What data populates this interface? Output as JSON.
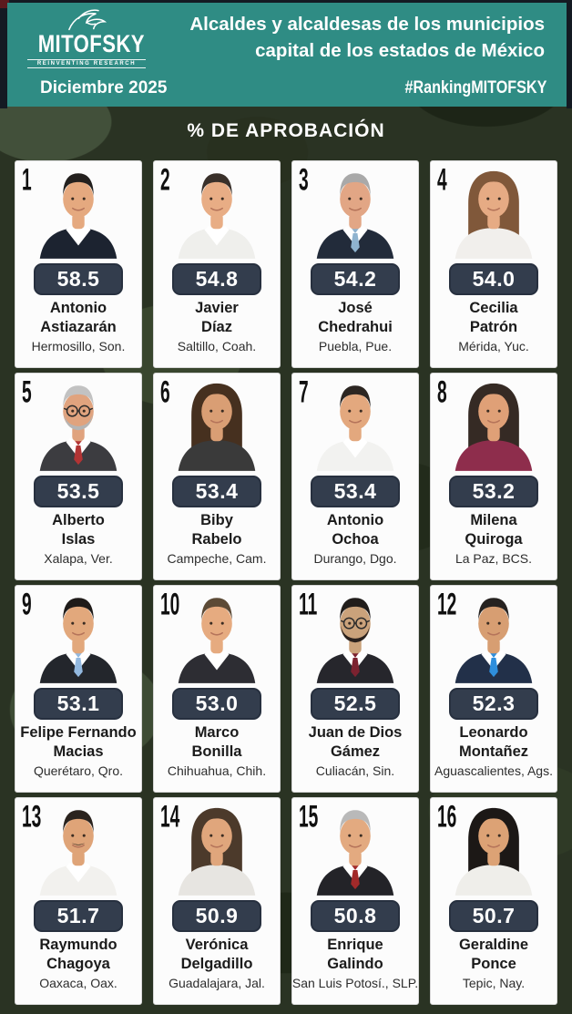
{
  "header": {
    "logo": {
      "wordmark": "MITOFSKY",
      "tagline": "REINVENTING RESEARCH"
    },
    "title_lines": [
      "Alcaldes y alcaldesas de los municipios",
      "capital de los estados de México"
    ],
    "date_label": "Diciembre 2025",
    "hashtag": "#RankingMITOFSKY"
  },
  "section": {
    "heading": "% DE APROBACIÓN"
  },
  "colors": {
    "teal": "#2F8C84",
    "badge": "#333D4D",
    "badge_border": "#27303F",
    "card_bg": "#FCFCFC",
    "camo_base": "#2A3323",
    "frame_dark": "#141A23",
    "corner_red": "#5C1A1E",
    "text_white": "#FFFFFF",
    "text_dark": "#1B1B1B"
  },
  "people": [
    {
      "rank": "1",
      "score": "58.5",
      "name": [
        "Antonio",
        "Astiazarán"
      ],
      "city": "Hermosillo, Son.",
      "avatar": {
        "gender": "m",
        "hair": "#23201e",
        "skin": "#e5a97f",
        "jacket": "#1c2330",
        "shirt": "#ffffff",
        "tie": null,
        "glasses": false,
        "mustache": false,
        "beard": null
      }
    },
    {
      "rank": "2",
      "score": "54.8",
      "name": [
        "Javier",
        "Díaz"
      ],
      "city": "Saltillo, Coah.",
      "avatar": {
        "gender": "m",
        "hair": "#39302a",
        "skin": "#e8ad85",
        "jacket": "#efefec",
        "shirt": "#ffffff",
        "tie": null,
        "glasses": false,
        "mustache": false,
        "beard": null
      }
    },
    {
      "rank": "3",
      "score": "54.2",
      "name": [
        "José",
        "Chedrahui"
      ],
      "city": "Puebla, Pue.",
      "avatar": {
        "gender": "m",
        "hair": "#a9a9a9",
        "skin": "#e2a685",
        "jacket": "#222b3a",
        "shirt": "#ffffff",
        "tie": "#8fb3cf",
        "glasses": false,
        "mustache": false,
        "beard": null
      }
    },
    {
      "rank": "4",
      "score": "54.0",
      "name": [
        "Cecilia",
        "Patrón"
      ],
      "city": "Mérida, Yuc.",
      "avatar": {
        "gender": "f",
        "hair": "#80583a",
        "skin": "#e6ab84",
        "jacket": "#f1efec",
        "shirt": null,
        "tie": null,
        "glasses": false,
        "mustache": false,
        "beard": null
      }
    },
    {
      "rank": "5",
      "score": "53.5",
      "name": [
        "Alberto",
        "Islas"
      ],
      "city": "Xalapa, Ver.",
      "avatar": {
        "gender": "m",
        "hair": "#c2c2c2",
        "skin": "#e0a37e",
        "jacket": "#3c3c40",
        "shirt": "#ffffff",
        "tie": "#b23434",
        "glasses": true,
        "mustache": false,
        "beard": "#b5b5b5"
      }
    },
    {
      "rank": "6",
      "score": "53.4",
      "name": [
        "Biby",
        "Rabelo"
      ],
      "city": "Campeche, Cam.",
      "avatar": {
        "gender": "f",
        "hair": "#46301f",
        "skin": "#d99e74",
        "jacket": "#3a3a3a",
        "shirt": null,
        "tie": null,
        "glasses": false,
        "mustache": false,
        "beard": null
      }
    },
    {
      "rank": "7",
      "score": "53.4",
      "name": [
        "Antonio",
        "Ochoa"
      ],
      "city": "Durango, Dgo.",
      "avatar": {
        "gender": "m",
        "hair": "#2c2622",
        "skin": "#e3a87e",
        "jacket": "#f2f2f0",
        "shirt": "#ffffff",
        "tie": null,
        "glasses": false,
        "mustache": false,
        "beard": null
      }
    },
    {
      "rank": "8",
      "score": "53.2",
      "name": [
        "Milena",
        "Quiroga"
      ],
      "city": "La Paz, BCS.",
      "avatar": {
        "gender": "f",
        "hair": "#352a24",
        "skin": "#dfa077",
        "jacket": "#8e2d4c",
        "shirt": null,
        "tie": null,
        "glasses": false,
        "mustache": false,
        "beard": null
      }
    },
    {
      "rank": "9",
      "score": "53.1",
      "name": [
        "Felipe Fernando",
        "Macias"
      ],
      "city": "Querétaro, Qro.",
      "avatar": {
        "gender": "m",
        "hair": "#1f1b19",
        "skin": "#e2a87c",
        "jacket": "#23262c",
        "shirt": "#ffffff",
        "tie": "#93b9e0",
        "glasses": false,
        "mustache": false,
        "beard": null
      }
    },
    {
      "rank": "10",
      "score": "53.0",
      "name": [
        "Marco",
        "Bonilla"
      ],
      "city": "Chihuahua, Chih.",
      "avatar": {
        "gender": "m",
        "hair": "#5c4a36",
        "skin": "#e6ab80",
        "jacket": "#2d2d33",
        "shirt": "#ffffff",
        "tie": null,
        "glasses": false,
        "mustache": false,
        "beard": null
      }
    },
    {
      "rank": "11",
      "score": "52.5",
      "name": [
        "Juan de Dios",
        "Gámez"
      ],
      "city": "Culiacán, Sin.",
      "avatar": {
        "gender": "m",
        "hair": "#211d1b",
        "skin": "#caa27b",
        "jacket": "#26262c",
        "shirt": "#ffffff",
        "tie": "#7c2230",
        "glasses": true,
        "mustache": false,
        "beard": "#2a211d"
      }
    },
    {
      "rank": "12",
      "score": "52.3",
      "name": [
        "Leonardo",
        "Montañez"
      ],
      "city": "Aguascalientes, Ags.",
      "avatar": {
        "gender": "m",
        "hair": "#262220",
        "skin": "#d79e72",
        "jacket": "#223049",
        "shirt": "#ffffff",
        "tie": "#2f8fdd",
        "glasses": false,
        "mustache": false,
        "beard": null
      }
    },
    {
      "rank": "13",
      "score": "51.7",
      "name": [
        "Raymundo",
        "Chagoya"
      ],
      "city": "Oaxaca, Oax.",
      "avatar": {
        "gender": "m",
        "hair": "#2a231e",
        "skin": "#dfa478",
        "jacket": "#f2f1ee",
        "shirt": "#ffffff",
        "tie": null,
        "glasses": false,
        "mustache": true,
        "beard": null
      }
    },
    {
      "rank": "14",
      "score": "50.9",
      "name": [
        "Verónica",
        "Delgadillo"
      ],
      "city": "Guadalajara, Jal.",
      "avatar": {
        "gender": "f",
        "hair": "#4c3a2b",
        "skin": "#e0a67c",
        "jacket": "#e7e5e1",
        "shirt": null,
        "tie": null,
        "glasses": false,
        "mustache": false,
        "beard": null
      }
    },
    {
      "rank": "15",
      "score": "50.8",
      "name": [
        "Enrique",
        "Galindo"
      ],
      "city": "San Luis Potosí., SLP.",
      "avatar": {
        "gender": "m",
        "hair": "#b9b9b9",
        "skin": "#e3aa80",
        "jacket": "#232328",
        "shirt": "#ffffff",
        "tie": "#a22a2a",
        "glasses": false,
        "mustache": false,
        "beard": null
      }
    },
    {
      "rank": "16",
      "score": "50.7",
      "name": [
        "Geraldine",
        "Ponce"
      ],
      "city": "Tepic, Nay.",
      "avatar": {
        "gender": "f",
        "hair": "#1c1816",
        "skin": "#dca275",
        "jacket": "#efeeea",
        "shirt": null,
        "tie": null,
        "glasses": false,
        "mustache": false,
        "beard": null
      }
    }
  ],
  "chart_data": {
    "type": "table",
    "title": "% DE APROBACIÓN",
    "subtitle": "Alcaldes y alcaldesas de los municipios capital de los estados de México",
    "period": "Diciembre 2025",
    "hashtag": "#RankingMITOFSKY",
    "columns": [
      "rank",
      "alcalde",
      "municipio",
      "aprobacion_pct"
    ],
    "rows": [
      [
        1,
        "Antonio Astiazarán",
        "Hermosillo, Son.",
        58.5
      ],
      [
        2,
        "Javier Díaz",
        "Saltillo, Coah.",
        54.8
      ],
      [
        3,
        "José Chedrahui",
        "Puebla, Pue.",
        54.2
      ],
      [
        4,
        "Cecilia Patrón",
        "Mérida, Yuc.",
        54.0
      ],
      [
        5,
        "Alberto Islas",
        "Xalapa, Ver.",
        53.5
      ],
      [
        6,
        "Biby Rabelo",
        "Campeche, Cam.",
        53.4
      ],
      [
        7,
        "Antonio Ochoa",
        "Durango, Dgo.",
        53.4
      ],
      [
        8,
        "Milena Quiroga",
        "La Paz, BCS.",
        53.2
      ],
      [
        9,
        "Felipe Fernando Macias",
        "Querétaro, Qro.",
        53.1
      ],
      [
        10,
        "Marco Bonilla",
        "Chihuahua, Chih.",
        53.0
      ],
      [
        11,
        "Juan de Dios Gámez",
        "Culiacán, Sin.",
        52.5
      ],
      [
        12,
        "Leonardo Montañez",
        "Aguascalientes, Ags.",
        52.3
      ],
      [
        13,
        "Raymundo Chagoya",
        "Oaxaca, Oax.",
        51.7
      ],
      [
        14,
        "Verónica Delgadillo",
        "Guadalajara, Jal.",
        50.9
      ],
      [
        15,
        "Enrique Galindo",
        "San Luis Potosí., SLP.",
        50.8
      ],
      [
        16,
        "Geraldine Ponce",
        "Tepic, Nay.",
        50.7
      ]
    ]
  }
}
